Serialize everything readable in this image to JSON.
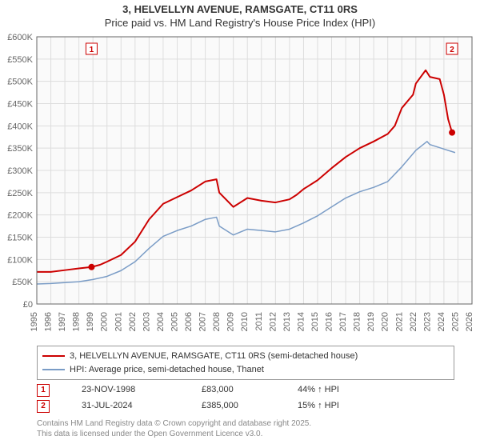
{
  "title_line1": "3, HELVELLYN AVENUE, RAMSGATE, CT11 0RS",
  "title_line2": "Price paid vs. HM Land Registry's House Price Index (HPI)",
  "chart": {
    "type": "line",
    "background_color": "#ffffff",
    "plot_background_color": "#fafafa",
    "grid_color": "#dddddd",
    "axis_color": "#666666",
    "label_fontsize": 11,
    "title_fontsize": 13,
    "x_years": [
      1995,
      1996,
      1997,
      1998,
      1999,
      2000,
      2001,
      2002,
      2003,
      2004,
      2005,
      2006,
      2007,
      2008,
      2009,
      2010,
      2011,
      2012,
      2013,
      2014,
      2015,
      2016,
      2017,
      2018,
      2019,
      2020,
      2021,
      2022,
      2023,
      2024,
      2025,
      2026
    ],
    "ylim": [
      0,
      600000
    ],
    "ytick_step": 50000,
    "ytick_labels": [
      "£0",
      "£50K",
      "£100K",
      "£150K",
      "£200K",
      "£250K",
      "£300K",
      "£350K",
      "£400K",
      "£450K",
      "£500K",
      "£550K",
      "£600K"
    ],
    "series": [
      {
        "name": "3, HELVELLYN AVENUE, RAMSGATE, CT11 0RS (semi-detached house)",
        "color": "#cc0000",
        "line_width": 2,
        "data": [
          [
            1995,
            72000
          ],
          [
            1996,
            72000
          ],
          [
            1997,
            76000
          ],
          [
            1998,
            80000
          ],
          [
            1998.9,
            83000
          ],
          [
            1999.5,
            88000
          ],
          [
            2000,
            95000
          ],
          [
            2001,
            110000
          ],
          [
            2002,
            140000
          ],
          [
            2003,
            190000
          ],
          [
            2004,
            225000
          ],
          [
            2005,
            240000
          ],
          [
            2006,
            255000
          ],
          [
            2007,
            275000
          ],
          [
            2007.8,
            280000
          ],
          [
            2008,
            250000
          ],
          [
            2009,
            218000
          ],
          [
            2010,
            238000
          ],
          [
            2011,
            232000
          ],
          [
            2012,
            228000
          ],
          [
            2013,
            235000
          ],
          [
            2013.5,
            245000
          ],
          [
            2014,
            258000
          ],
          [
            2015,
            278000
          ],
          [
            2016,
            305000
          ],
          [
            2017,
            330000
          ],
          [
            2018,
            350000
          ],
          [
            2019,
            365000
          ],
          [
            2020,
            382000
          ],
          [
            2020.5,
            400000
          ],
          [
            2021,
            440000
          ],
          [
            2021.8,
            470000
          ],
          [
            2022,
            495000
          ],
          [
            2022.7,
            525000
          ],
          [
            2023,
            510000
          ],
          [
            2023.7,
            505000
          ],
          [
            2024,
            470000
          ],
          [
            2024.3,
            415000
          ],
          [
            2024.58,
            385000
          ]
        ]
      },
      {
        "name": "HPI: Average price, semi-detached house, Thanet",
        "color": "#7a9cc6",
        "line_width": 1.5,
        "data": [
          [
            1995,
            45000
          ],
          [
            1996,
            46000
          ],
          [
            1997,
            48000
          ],
          [
            1998,
            50000
          ],
          [
            1999,
            55000
          ],
          [
            2000,
            62000
          ],
          [
            2001,
            75000
          ],
          [
            2002,
            95000
          ],
          [
            2003,
            125000
          ],
          [
            2004,
            152000
          ],
          [
            2005,
            165000
          ],
          [
            2006,
            175000
          ],
          [
            2007,
            190000
          ],
          [
            2007.8,
            195000
          ],
          [
            2008,
            175000
          ],
          [
            2009,
            155000
          ],
          [
            2010,
            168000
          ],
          [
            2011,
            165000
          ],
          [
            2012,
            162000
          ],
          [
            2013,
            168000
          ],
          [
            2014,
            182000
          ],
          [
            2015,
            198000
          ],
          [
            2016,
            218000
          ],
          [
            2017,
            238000
          ],
          [
            2018,
            252000
          ],
          [
            2019,
            262000
          ],
          [
            2020,
            275000
          ],
          [
            2021,
            308000
          ],
          [
            2022,
            345000
          ],
          [
            2022.8,
            365000
          ],
          [
            2023,
            358000
          ],
          [
            2024,
            348000
          ],
          [
            2024.8,
            340000
          ]
        ]
      }
    ],
    "markers": [
      {
        "label": "1",
        "year": 1998.9,
        "price": 83000,
        "color": "#cc0000",
        "fill": "#cc0000"
      },
      {
        "label": "2",
        "year": 2024.58,
        "price": 385000,
        "color": "#cc0000",
        "fill": "#cc0000"
      }
    ]
  },
  "legend": {
    "items": [
      {
        "color": "#cc0000",
        "label": "3, HELVELLYN AVENUE, RAMSGATE, CT11 0RS (semi-detached house)"
      },
      {
        "color": "#7a9cc6",
        "label": "HPI: Average price, semi-detached house, Thanet"
      }
    ]
  },
  "sales": [
    {
      "marker": "1",
      "date": "23-NOV-1998",
      "price": "£83,000",
      "pct": "44% ↑ HPI"
    },
    {
      "marker": "2",
      "date": "31-JUL-2024",
      "price": "£385,000",
      "pct": "15% ↑ HPI"
    }
  ],
  "footer_line1": "Contains HM Land Registry data © Crown copyright and database right 2025.",
  "footer_line2": "This data is licensed under the Open Government Licence v3.0."
}
